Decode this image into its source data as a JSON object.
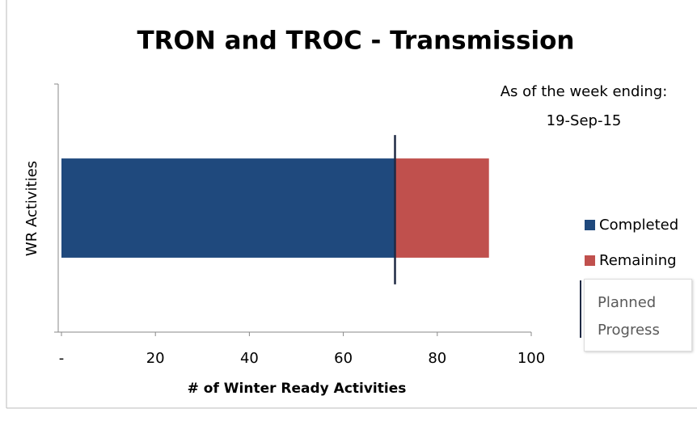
{
  "chart_data": {
    "type": "bar",
    "orientation": "horizontal",
    "stacked": true,
    "title": "TRON and TROC - Transmission",
    "annotations": [
      "As of the week ending:",
      "19-Sep-15"
    ],
    "xlabel": "# of Winter Ready Activities",
    "ylabel": "WR Activities",
    "categories": [
      null
    ],
    "series": [
      {
        "name": "Completed",
        "color": "#1f497d",
        "values": [
          71
        ]
      },
      {
        "name": "Remaining",
        "color": "#c0504d",
        "values": [
          20
        ]
      }
    ],
    "planned": {
      "name": "Planned Progress",
      "color": "#1f2a44",
      "values": [
        71
      ]
    },
    "xlim": [
      0,
      100
    ],
    "xticks": [
      {
        "value": 0,
        "label": "-"
      },
      20,
      40,
      60,
      80,
      100
    ],
    "legend": "right"
  }
}
